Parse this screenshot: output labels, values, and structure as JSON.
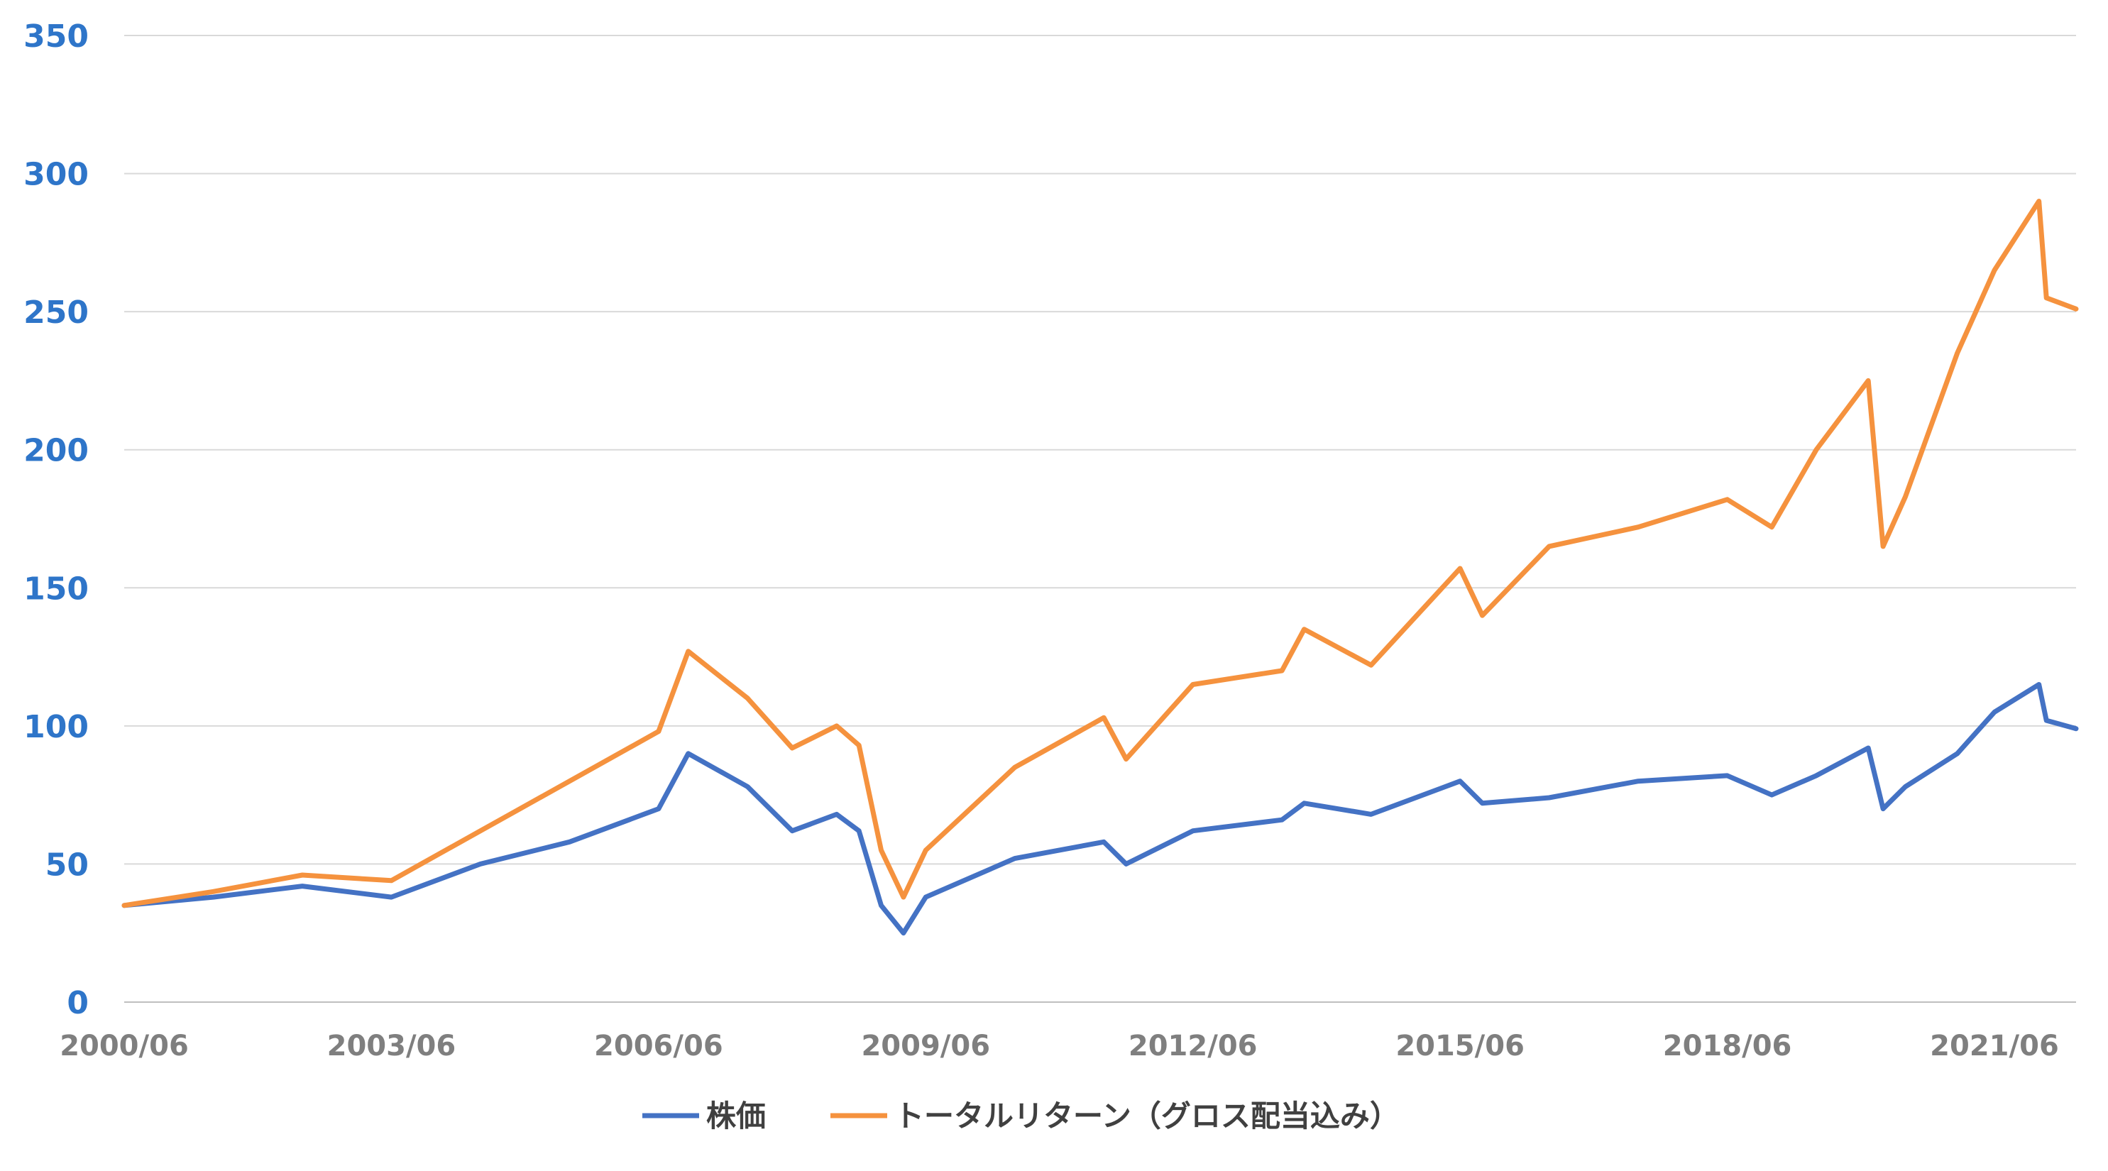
{
  "chart_data": {
    "type": "line",
    "title": "",
    "xlabel": "",
    "ylabel": "",
    "ylim": [
      0,
      350
    ],
    "yticks": [
      0,
      50,
      100,
      150,
      200,
      250,
      300,
      350
    ],
    "xlim": [
      "2000/06",
      "2022/05"
    ],
    "xticks": [
      "2000/06",
      "2003/06",
      "2006/06",
      "2009/06",
      "2012/06",
      "2015/06",
      "2018/06",
      "2021/06"
    ],
    "grid": "horizontal",
    "legend_position": "bottom-center",
    "x": [
      "2000/06",
      "2001/06",
      "2002/06",
      "2003/06",
      "2004/06",
      "2005/06",
      "2006/06",
      "2006/10",
      "2007/06",
      "2007/12",
      "2008/06",
      "2008/09",
      "2008/12",
      "2009/03",
      "2009/06",
      "2010/06",
      "2011/06",
      "2011/09",
      "2012/06",
      "2013/06",
      "2013/09",
      "2014/06",
      "2015/06",
      "2015/09",
      "2016/06",
      "2017/06",
      "2018/06",
      "2018/12",
      "2019/06",
      "2020/01",
      "2020/03",
      "2020/06",
      "2021/01",
      "2021/06",
      "2021/12",
      "2022/01",
      "2022/05"
    ],
    "series": [
      {
        "name": "株価",
        "color": "#4472c4",
        "values": [
          35,
          38,
          42,
          38,
          50,
          58,
          70,
          90,
          78,
          62,
          68,
          62,
          35,
          25,
          38,
          52,
          58,
          50,
          62,
          66,
          72,
          68,
          80,
          72,
          74,
          80,
          82,
          75,
          82,
          92,
          70,
          78,
          90,
          105,
          115,
          102,
          99
        ]
      },
      {
        "name": "トータルリターン（グロス配当込み）",
        "color": "#f5923e",
        "values": [
          35,
          40,
          46,
          44,
          62,
          80,
          98,
          127,
          110,
          92,
          100,
          93,
          55,
          38,
          55,
          85,
          103,
          88,
          115,
          120,
          135,
          122,
          157,
          140,
          165,
          172,
          182,
          172,
          200,
          225,
          165,
          183,
          235,
          265,
          290,
          255,
          251
        ]
      }
    ]
  }
}
